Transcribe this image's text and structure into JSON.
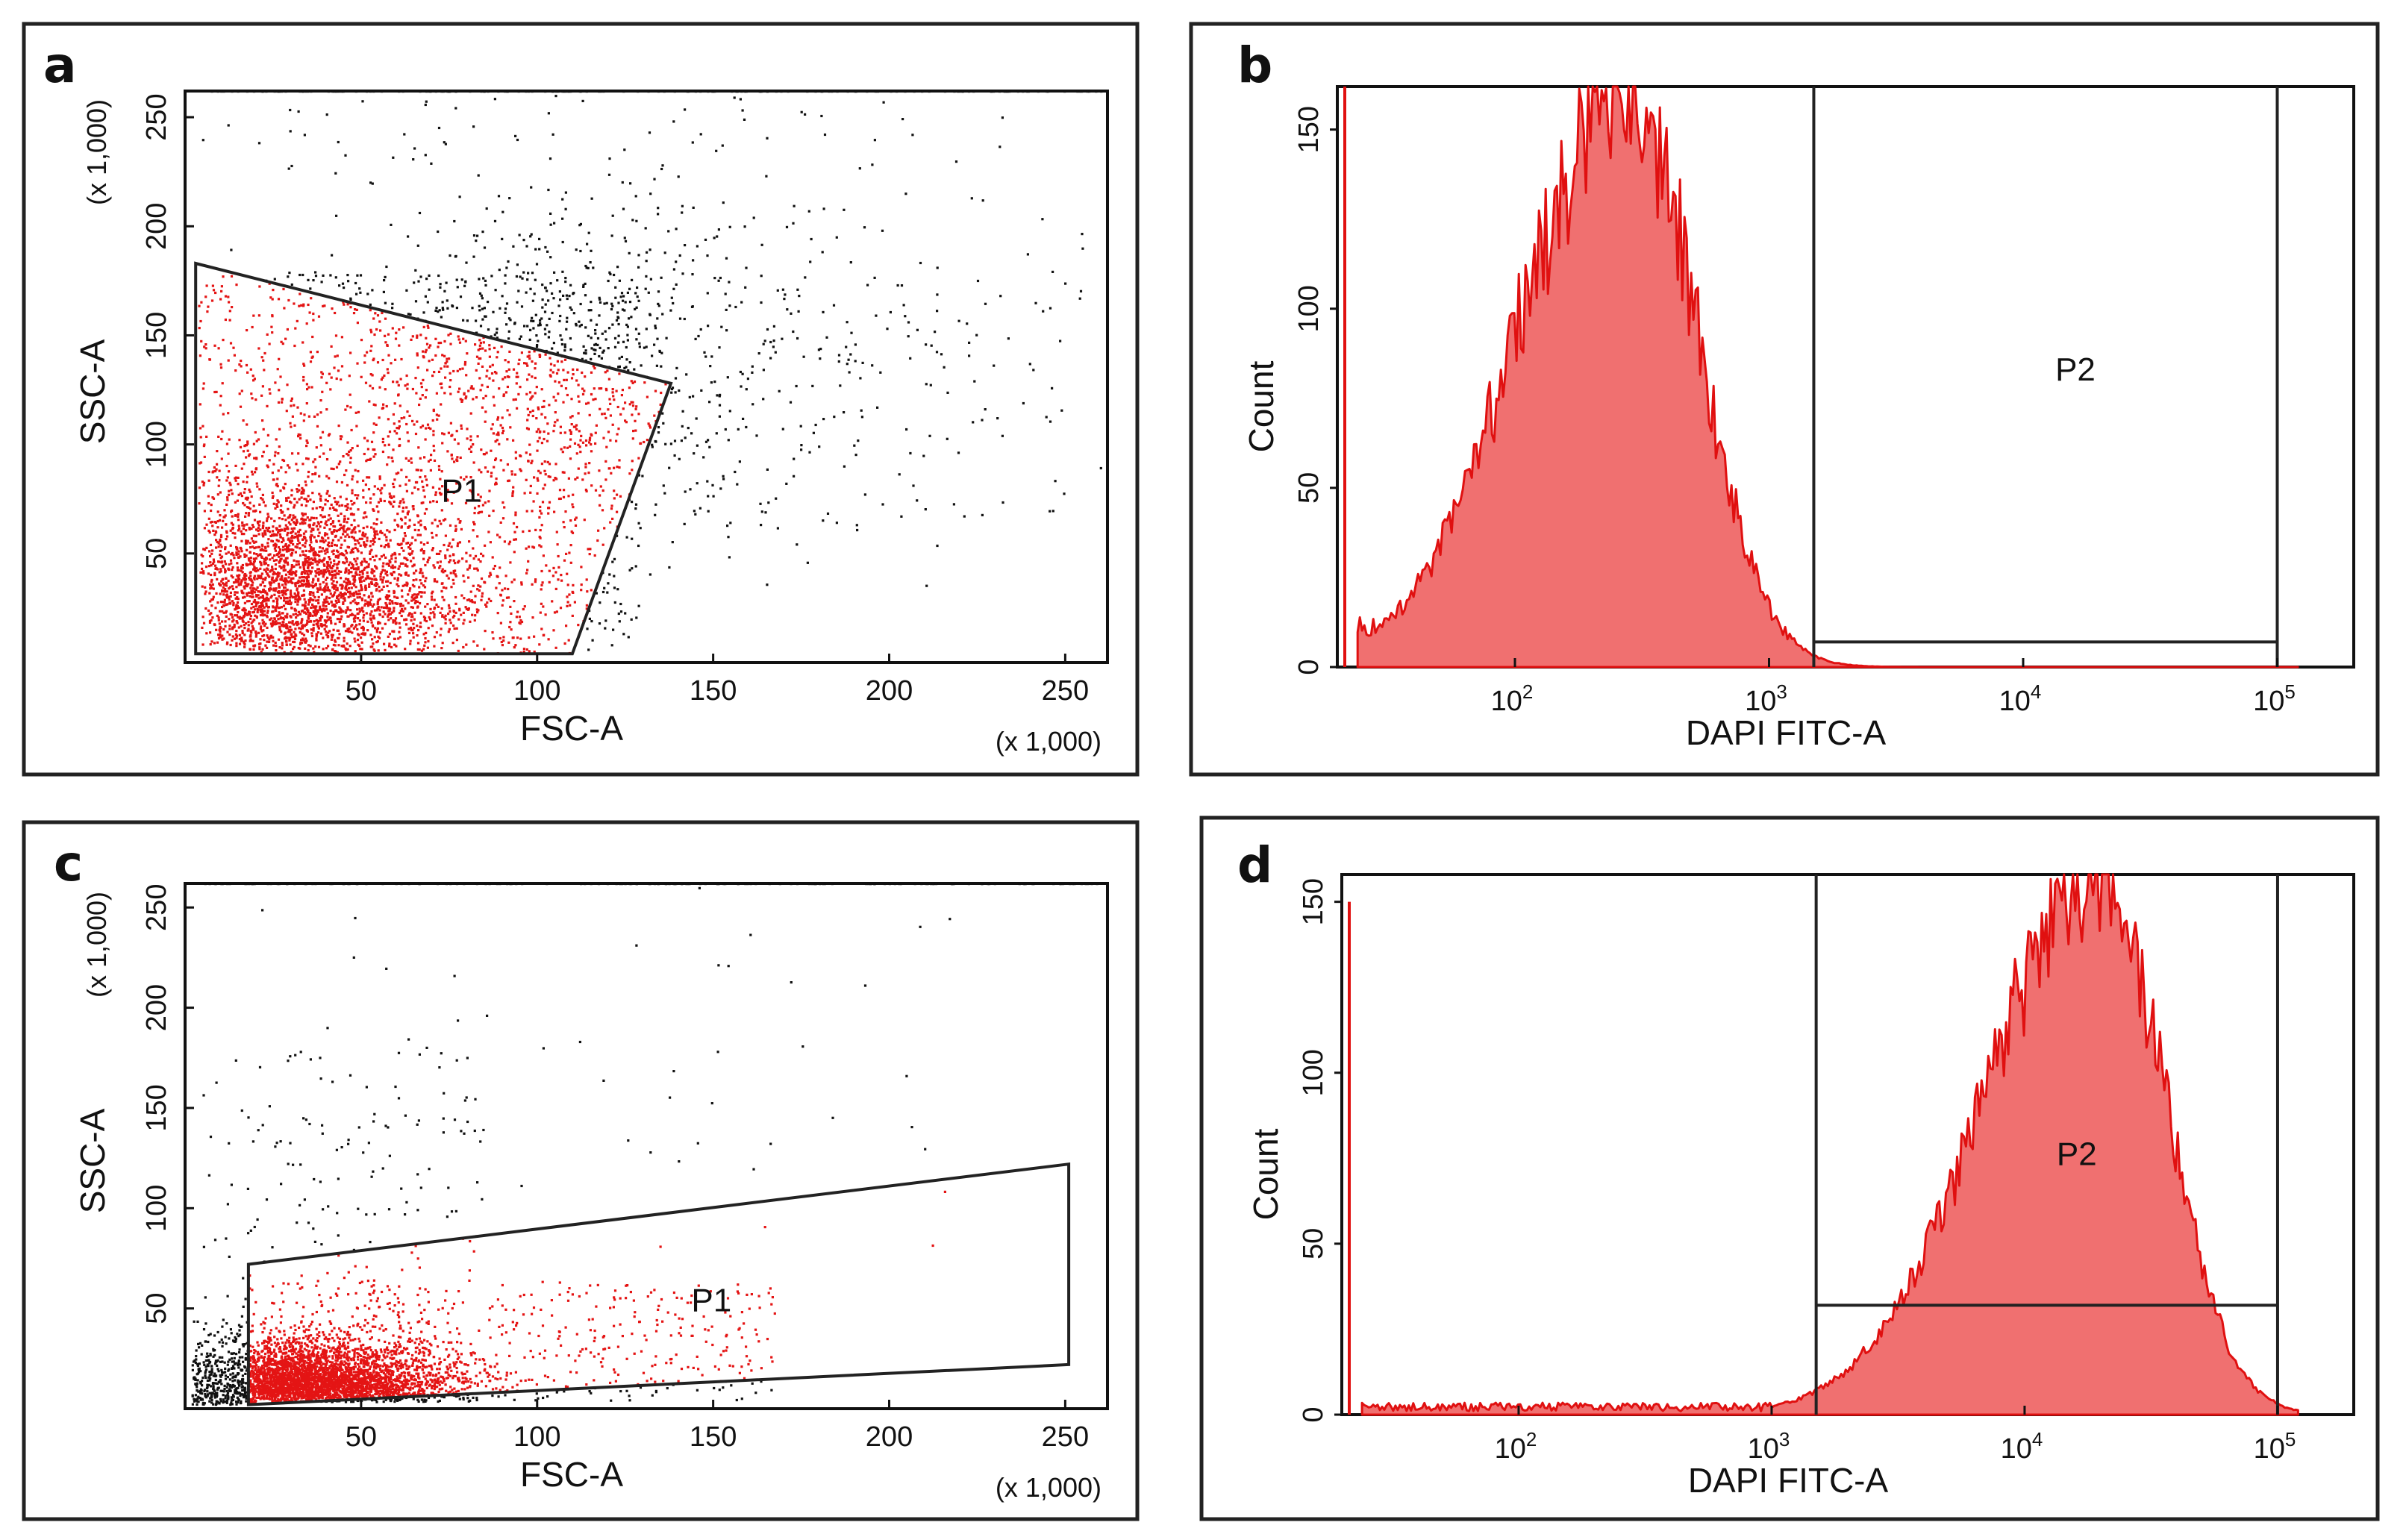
{
  "figure": {
    "panels": [
      {
        "id": "a",
        "letter": "a"
      },
      {
        "id": "b",
        "letter": "b"
      },
      {
        "id": "c",
        "letter": "c"
      },
      {
        "id": "d",
        "letter": "d"
      }
    ]
  },
  "chart_data": [
    {
      "panel": "a",
      "type": "scatter",
      "xlabel": "FSC-A",
      "ylabel": "SSC-A",
      "x_scale_note": "(x 1,000)",
      "y_scale_note": "(x 1,000)",
      "xlim": [
        0,
        262
      ],
      "ylim": [
        0,
        262
      ],
      "x_ticks": [
        50,
        100,
        150,
        200,
        250
      ],
      "y_ticks": [
        50,
        100,
        150,
        200,
        250
      ],
      "gate": {
        "name": "P1",
        "polygon": [
          [
            3,
            183
          ],
          [
            138,
            128
          ],
          [
            110,
            4
          ],
          [
            3,
            4
          ]
        ],
        "color": "#e41414"
      },
      "populations": [
        {
          "name": "gated",
          "color": "#e41414",
          "approx_events": 4200
        },
        {
          "name": "ungated",
          "color": "#111111",
          "approx_events": 900
        }
      ]
    },
    {
      "panel": "b",
      "type": "area",
      "xlabel": "DAPI FITC-A",
      "ylabel": "Count",
      "x_scale": "log",
      "xlim": [
        20,
        200000
      ],
      "ylim": [
        0,
        162
      ],
      "x_ticks": [
        {
          "value": 100,
          "base": "10",
          "exp": "2"
        },
        {
          "value": 1000,
          "base": "10",
          "exp": "3"
        },
        {
          "value": 10000,
          "base": "10",
          "exp": "4"
        },
        {
          "value": 100000,
          "base": "10",
          "exp": "5"
        }
      ],
      "y_ticks": [
        0,
        50,
        100,
        150
      ],
      "series": [
        {
          "name": "DAPI histogram",
          "peak_x": 280,
          "peak_count": 162,
          "color": "#e01010"
        }
      ],
      "gate": {
        "name": "P2",
        "x_range": [
          1500,
          100000
        ],
        "count_level": 7
      }
    },
    {
      "panel": "c",
      "type": "scatter",
      "xlabel": "FSC-A",
      "ylabel": "SSC-A",
      "x_scale_note": "(x 1,000)",
      "y_scale_note": "(x 1,000)",
      "xlim": [
        0,
        262
      ],
      "ylim": [
        0,
        262
      ],
      "x_ticks": [
        50,
        100,
        150,
        200,
        250
      ],
      "y_ticks": [
        50,
        100,
        150,
        200,
        250
      ],
      "gate": {
        "name": "P1",
        "polygon": [
          [
            18,
            72
          ],
          [
            251,
            122
          ],
          [
            251,
            22
          ],
          [
            18,
            2
          ]
        ],
        "color": "#e41414"
      },
      "populations": [
        {
          "name": "gated",
          "color": "#e41414",
          "approx_events": 3800
        },
        {
          "name": "ungated",
          "color": "#111111",
          "approx_events": 700
        }
      ]
    },
    {
      "panel": "d",
      "type": "area",
      "xlabel": "DAPI FITC-A",
      "ylabel": "Count",
      "x_scale": "log",
      "xlim": [
        20,
        200000
      ],
      "ylim": [
        0,
        158
      ],
      "x_ticks": [
        {
          "value": 100,
          "base": "10",
          "exp": "2"
        },
        {
          "value": 1000,
          "base": "10",
          "exp": "3"
        },
        {
          "value": 10000,
          "base": "10",
          "exp": "4"
        },
        {
          "value": 100000,
          "base": "10",
          "exp": "5"
        }
      ],
      "y_ticks": [
        0,
        50,
        100,
        150
      ],
      "series": [
        {
          "name": "DAPI histogram",
          "peak_x": 20000,
          "peak_count": 158,
          "color": "#e01010"
        }
      ],
      "gate": {
        "name": "P2",
        "x_range": [
          1500,
          100000
        ],
        "count_level": 32
      }
    }
  ]
}
